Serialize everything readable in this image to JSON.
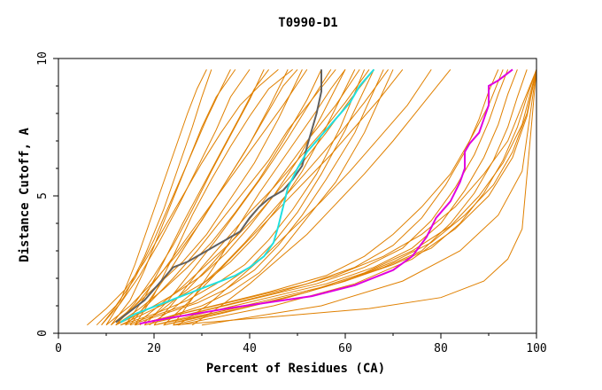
{
  "chart_data": {
    "type": "line",
    "title": "T0990-D1",
    "xlabel": "Percent of Residues (CA)",
    "ylabel": "Distance Cutoff, A",
    "xlim": [
      0,
      100
    ],
    "ylim": [
      0,
      10
    ],
    "xticks": [
      "0",
      "20",
      "40",
      "60",
      "80",
      "100"
    ],
    "yticks": [
      "0",
      "5",
      "10"
    ],
    "grid": false,
    "legend": "none",
    "colors": {
      "background_models": "#e08000",
      "highlight_gray": "#606060",
      "highlight_cyan": "#20e0e0",
      "highlight_magenta": "#e000e0"
    },
    "background_series": [
      {
        "x": [
          6,
          10,
          14,
          18,
          22,
          26,
          30,
          34,
          38,
          42,
          46
        ],
        "y": [
          0.3,
          0.9,
          1.6,
          2.6,
          3.8,
          5.0,
          6.2,
          7.3,
          8.3,
          9.0,
          9.6
        ]
      },
      {
        "x": [
          8,
          12,
          16,
          20,
          24,
          28,
          31,
          34,
          36
        ],
        "y": [
          0.3,
          1.0,
          2.0,
          3.4,
          5.0,
          6.6,
          7.8,
          8.9,
          9.6
        ]
      },
      {
        "x": [
          9,
          13,
          16,
          19,
          22,
          25,
          27,
          29,
          31
        ],
        "y": [
          0.3,
          1.2,
          2.5,
          4.0,
          5.5,
          7.0,
          8.0,
          8.9,
          9.6
        ]
      },
      {
        "x": [
          10,
          15,
          20,
          25,
          30,
          35,
          40,
          44,
          48
        ],
        "y": [
          0.3,
          1.0,
          1.9,
          2.9,
          4.1,
          5.5,
          6.9,
          8.2,
          9.6
        ]
      },
      {
        "x": [
          11,
          16,
          21,
          26,
          31,
          36,
          41,
          46,
          51
        ],
        "y": [
          0.3,
          1.0,
          1.8,
          2.6,
          3.6,
          4.9,
          6.2,
          7.8,
          9.6
        ]
      },
      {
        "x": [
          12,
          17,
          22,
          27,
          32,
          37,
          42,
          47,
          52,
          55
        ],
        "y": [
          0.3,
          0.9,
          1.6,
          2.4,
          3.3,
          4.4,
          5.6,
          7.0,
          8.5,
          9.6
        ]
      },
      {
        "x": [
          12,
          18,
          24,
          30,
          35,
          40,
          45,
          50,
          55,
          60
        ],
        "y": [
          0.3,
          0.8,
          1.4,
          2.1,
          2.9,
          3.9,
          5.0,
          6.3,
          7.9,
          9.6
        ]
      },
      {
        "x": [
          13,
          19,
          25,
          31,
          36,
          41,
          46,
          51,
          56,
          62
        ],
        "y": [
          0.3,
          0.8,
          1.3,
          1.9,
          2.6,
          3.5,
          4.6,
          5.9,
          7.5,
          9.6
        ]
      },
      {
        "x": [
          13,
          20,
          27,
          33,
          39,
          44,
          49,
          54,
          59,
          64
        ],
        "y": [
          0.3,
          0.7,
          1.2,
          1.8,
          2.5,
          3.4,
          4.5,
          5.8,
          7.5,
          9.6
        ]
      },
      {
        "x": [
          14,
          21,
          28,
          34,
          40,
          45,
          50,
          55,
          60,
          66
        ],
        "y": [
          0.3,
          0.7,
          1.1,
          1.7,
          2.4,
          3.3,
          4.4,
          5.8,
          7.4,
          9.6
        ]
      },
      {
        "x": [
          15,
          22,
          29,
          35,
          41,
          46,
          51,
          56,
          62,
          68
        ],
        "y": [
          0.3,
          0.7,
          1.1,
          1.6,
          2.3,
          3.2,
          4.3,
          5.6,
          7.3,
          9.6
        ]
      },
      {
        "x": [
          16,
          23,
          30,
          36,
          42,
          47,
          52,
          58,
          64,
          70
        ],
        "y": [
          0.3,
          0.6,
          1.0,
          1.5,
          2.2,
          3.1,
          4.2,
          5.5,
          7.3,
          9.6
        ]
      },
      {
        "x": [
          12,
          16,
          20,
          24,
          28,
          32,
          36,
          40,
          43
        ],
        "y": [
          0.3,
          1.1,
          2.1,
          3.2,
          4.5,
          5.9,
          7.2,
          8.5,
          9.6
        ]
      },
      {
        "x": [
          14,
          18,
          22,
          26,
          30,
          34,
          38,
          41,
          44
        ],
        "y": [
          0.3,
          1.3,
          2.6,
          4.0,
          5.3,
          6.6,
          7.9,
          8.9,
          9.6
        ]
      },
      {
        "x": [
          16,
          20,
          24,
          28,
          32,
          36,
          40,
          44,
          49
        ],
        "y": [
          0.3,
          1.4,
          2.8,
          4.3,
          5.6,
          6.8,
          7.9,
          8.9,
          9.6
        ]
      },
      {
        "x": [
          15,
          19,
          23,
          27,
          31,
          35,
          39,
          43,
          47,
          50
        ],
        "y": [
          0.3,
          1.2,
          2.2,
          3.3,
          4.4,
          5.5,
          6.6,
          7.8,
          9.0,
          9.6
        ]
      },
      {
        "x": [
          18,
          23,
          28,
          33,
          38,
          43,
          48,
          53,
          57
        ],
        "y": [
          0.3,
          1.2,
          2.3,
          3.4,
          4.6,
          5.8,
          7.1,
          8.5,
          9.6
        ]
      },
      {
        "x": [
          20,
          25,
          30,
          35,
          40,
          45,
          50,
          55,
          60,
          65
        ],
        "y": [
          0.3,
          1.3,
          2.4,
          3.4,
          4.4,
          5.3,
          6.3,
          7.3,
          8.4,
          9.6
        ]
      },
      {
        "x": [
          22,
          27,
          32,
          37,
          42,
          47,
          52,
          57,
          62,
          67,
          72
        ],
        "y": [
          0.3,
          1.1,
          2.0,
          2.9,
          3.8,
          4.7,
          5.6,
          6.5,
          7.5,
          8.5,
          9.6
        ]
      },
      {
        "x": [
          25,
          31,
          37,
          43,
          49,
          55,
          61,
          67,
          73,
          78
        ],
        "y": [
          0.3,
          1.0,
          1.9,
          2.8,
          3.8,
          4.8,
          5.9,
          7.1,
          8.3,
          9.6
        ]
      },
      {
        "x": [
          28,
          34,
          40,
          46,
          52,
          58,
          64,
          70,
          76,
          82
        ],
        "y": [
          0.3,
          1.0,
          1.8,
          2.7,
          3.6,
          4.7,
          5.8,
          7.0,
          8.3,
          9.6
        ]
      },
      {
        "x": [
          10,
          14,
          18,
          22,
          25,
          28,
          30,
          32
        ],
        "y": [
          0.3,
          1.4,
          2.8,
          4.5,
          6.0,
          7.5,
          8.6,
          9.6
        ]
      },
      {
        "x": [
          11,
          15,
          18,
          21,
          24,
          27,
          30,
          33,
          37
        ],
        "y": [
          0.3,
          1.2,
          2.3,
          3.6,
          4.9,
          6.2,
          7.5,
          8.6,
          9.6
        ]
      },
      {
        "x": [
          9,
          13,
          17,
          21,
          25,
          29,
          33,
          36,
          40
        ],
        "y": [
          0.3,
          1.1,
          2.1,
          3.3,
          4.6,
          6.0,
          7.4,
          8.6,
          9.6
        ]
      },
      {
        "x": [
          17,
          22,
          27,
          32,
          37,
          42,
          47,
          52,
          58,
          63
        ],
        "y": [
          0.3,
          0.9,
          1.6,
          2.5,
          3.5,
          4.6,
          5.8,
          7.0,
          8.3,
          9.6
        ]
      },
      {
        "x": [
          19,
          24,
          29,
          34,
          39,
          44,
          49,
          54,
          59,
          64,
          69
        ],
        "y": [
          0.3,
          0.9,
          1.6,
          2.4,
          3.3,
          4.3,
          5.3,
          6.3,
          7.3,
          8.4,
          9.6
        ]
      },
      {
        "x": [
          12,
          17,
          22,
          27,
          32,
          37,
          42,
          47,
          52
        ],
        "y": [
          0.3,
          1.2,
          2.3,
          3.5,
          4.7,
          5.9,
          7.1,
          8.3,
          9.6
        ]
      },
      {
        "x": [
          14,
          19,
          24,
          29,
          34,
          39,
          44,
          48,
          53,
          58
        ],
        "y": [
          0.3,
          1.1,
          2.0,
          3.0,
          4.1,
          5.2,
          6.3,
          7.4,
          8.5,
          9.6
        ]
      },
      {
        "x": [
          24,
          29,
          34,
          38,
          42,
          46,
          50,
          54,
          57,
          60
        ],
        "y": [
          0.3,
          1.5,
          2.8,
          4.0,
          5.1,
          6.1,
          7.1,
          8.1,
          8.9,
          9.6
        ]
      },
      {
        "x": [
          16,
          21,
          26,
          31,
          36,
          41,
          46,
          51,
          56,
          61,
          66
        ],
        "y": [
          0.3,
          1.0,
          1.7,
          2.5,
          3.3,
          4.2,
          5.2,
          6.2,
          7.3,
          8.5,
          9.6
        ]
      },
      {
        "x": [
          16,
          28,
          40,
          52,
          62,
          70,
          76,
          81,
          85,
          88,
          90,
          92
        ],
        "y": [
          0.3,
          0.8,
          1.3,
          1.8,
          2.4,
          3.2,
          4.2,
          5.4,
          6.6,
          7.8,
          8.8,
          9.6
        ]
      },
      {
        "x": [
          18,
          30,
          42,
          54,
          64,
          72,
          78,
          83,
          87,
          90,
          92,
          94
        ],
        "y": [
          0.3,
          0.8,
          1.3,
          1.8,
          2.4,
          3.1,
          4.1,
          5.3,
          6.5,
          7.7,
          8.7,
          9.6
        ]
      },
      {
        "x": [
          20,
          32,
          44,
          56,
          66,
          74,
          80,
          85,
          89,
          92,
          94,
          96
        ],
        "y": [
          0.3,
          0.8,
          1.3,
          1.8,
          2.4,
          3.1,
          4.0,
          5.2,
          6.4,
          7.6,
          8.7,
          9.6
        ]
      },
      {
        "x": [
          22,
          34,
          46,
          58,
          68,
          76,
          82,
          87,
          91,
          94,
          96,
          98
        ],
        "y": [
          0.3,
          0.8,
          1.3,
          1.8,
          2.4,
          3.0,
          4.0,
          5.1,
          6.3,
          7.5,
          8.6,
          9.6
        ]
      },
      {
        "x": [
          24,
          36,
          48,
          60,
          70,
          78,
          84,
          89,
          93,
          96,
          98,
          100
        ],
        "y": [
          0.3,
          0.8,
          1.3,
          1.9,
          2.5,
          3.1,
          4.0,
          5.1,
          6.3,
          7.5,
          8.6,
          9.6
        ]
      },
      {
        "x": [
          20,
          34,
          48,
          60,
          70,
          78,
          85,
          91,
          95,
          98,
          100
        ],
        "y": [
          0.3,
          0.8,
          1.3,
          1.9,
          2.6,
          3.3,
          4.3,
          5.4,
          6.6,
          8.0,
          9.6
        ]
      },
      {
        "x": [
          22,
          38,
          52,
          64,
          74,
          82,
          88,
          93,
          97,
          100
        ],
        "y": [
          0.3,
          0.9,
          1.5,
          2.2,
          3.0,
          3.9,
          5.0,
          6.2,
          7.6,
          9.6
        ]
      },
      {
        "x": [
          25,
          45,
          62,
          74,
          83,
          90,
          95,
          98,
          100
        ],
        "y": [
          0.3,
          1.0,
          1.8,
          2.7,
          3.8,
          5.0,
          6.4,
          7.9,
          9.6
        ]
      },
      {
        "x": [
          30,
          55,
          72,
          84,
          92,
          97,
          100
        ],
        "y": [
          0.3,
          1.0,
          1.9,
          3.0,
          4.3,
          5.9,
          9.6
        ]
      },
      {
        "x": [
          24,
          45,
          65,
          80,
          89,
          94,
          97,
          100
        ],
        "y": [
          0.3,
          0.6,
          0.9,
          1.3,
          1.9,
          2.7,
          3.8,
          9.6
        ]
      },
      {
        "x": [
          16,
          30,
          44,
          56,
          64,
          70,
          76,
          82,
          86,
          90,
          93
        ],
        "y": [
          0.3,
          0.9,
          1.5,
          2.1,
          2.8,
          3.6,
          4.6,
          5.8,
          7.0,
          8.3,
          9.6
        ]
      },
      {
        "x": [
          18,
          32,
          46,
          58,
          68,
          76,
          83,
          89,
          94,
          97,
          100
        ],
        "y": [
          0.3,
          0.9,
          1.5,
          2.1,
          2.8,
          3.6,
          4.6,
          5.8,
          7.0,
          8.3,
          9.6
        ]
      }
    ],
    "highlight_series": [
      {
        "color": "#606060",
        "x": [
          12,
          15,
          18,
          20,
          22,
          24,
          27,
          30,
          33,
          36,
          38,
          40,
          42,
          44,
          47,
          49,
          51,
          52,
          53,
          54,
          55,
          55
        ],
        "y": [
          0.4,
          0.8,
          1.2,
          1.6,
          2.0,
          2.4,
          2.6,
          2.9,
          3.2,
          3.5,
          3.7,
          4.2,
          4.6,
          4.9,
          5.2,
          5.6,
          6.1,
          6.8,
          7.4,
          8.0,
          8.8,
          9.6
        ]
      },
      {
        "color": "#20e0e0",
        "x": [
          13,
          16,
          19,
          22,
          25,
          28,
          31,
          34,
          37,
          40,
          43,
          45,
          46,
          47,
          48,
          50,
          52,
          55,
          58,
          61,
          63,
          66
        ],
        "y": [
          0.4,
          0.7,
          0.9,
          1.1,
          1.3,
          1.5,
          1.7,
          1.9,
          2.1,
          2.4,
          2.8,
          3.3,
          3.9,
          4.6,
          5.3,
          6.0,
          6.6,
          7.2,
          7.8,
          8.4,
          9.0,
          9.6
        ]
      },
      {
        "color": "#e000e0",
        "x": [
          17,
          23,
          30,
          37,
          45,
          53,
          62,
          70,
          74,
          77,
          79,
          82,
          84,
          85,
          85,
          86,
          88,
          89,
          90,
          90,
          92,
          95
        ],
        "y": [
          0.35,
          0.55,
          0.75,
          0.95,
          1.15,
          1.35,
          1.75,
          2.3,
          2.8,
          3.5,
          4.2,
          4.8,
          5.5,
          6.0,
          6.6,
          6.9,
          7.3,
          7.8,
          8.3,
          9.0,
          9.2,
          9.6
        ]
      }
    ]
  }
}
